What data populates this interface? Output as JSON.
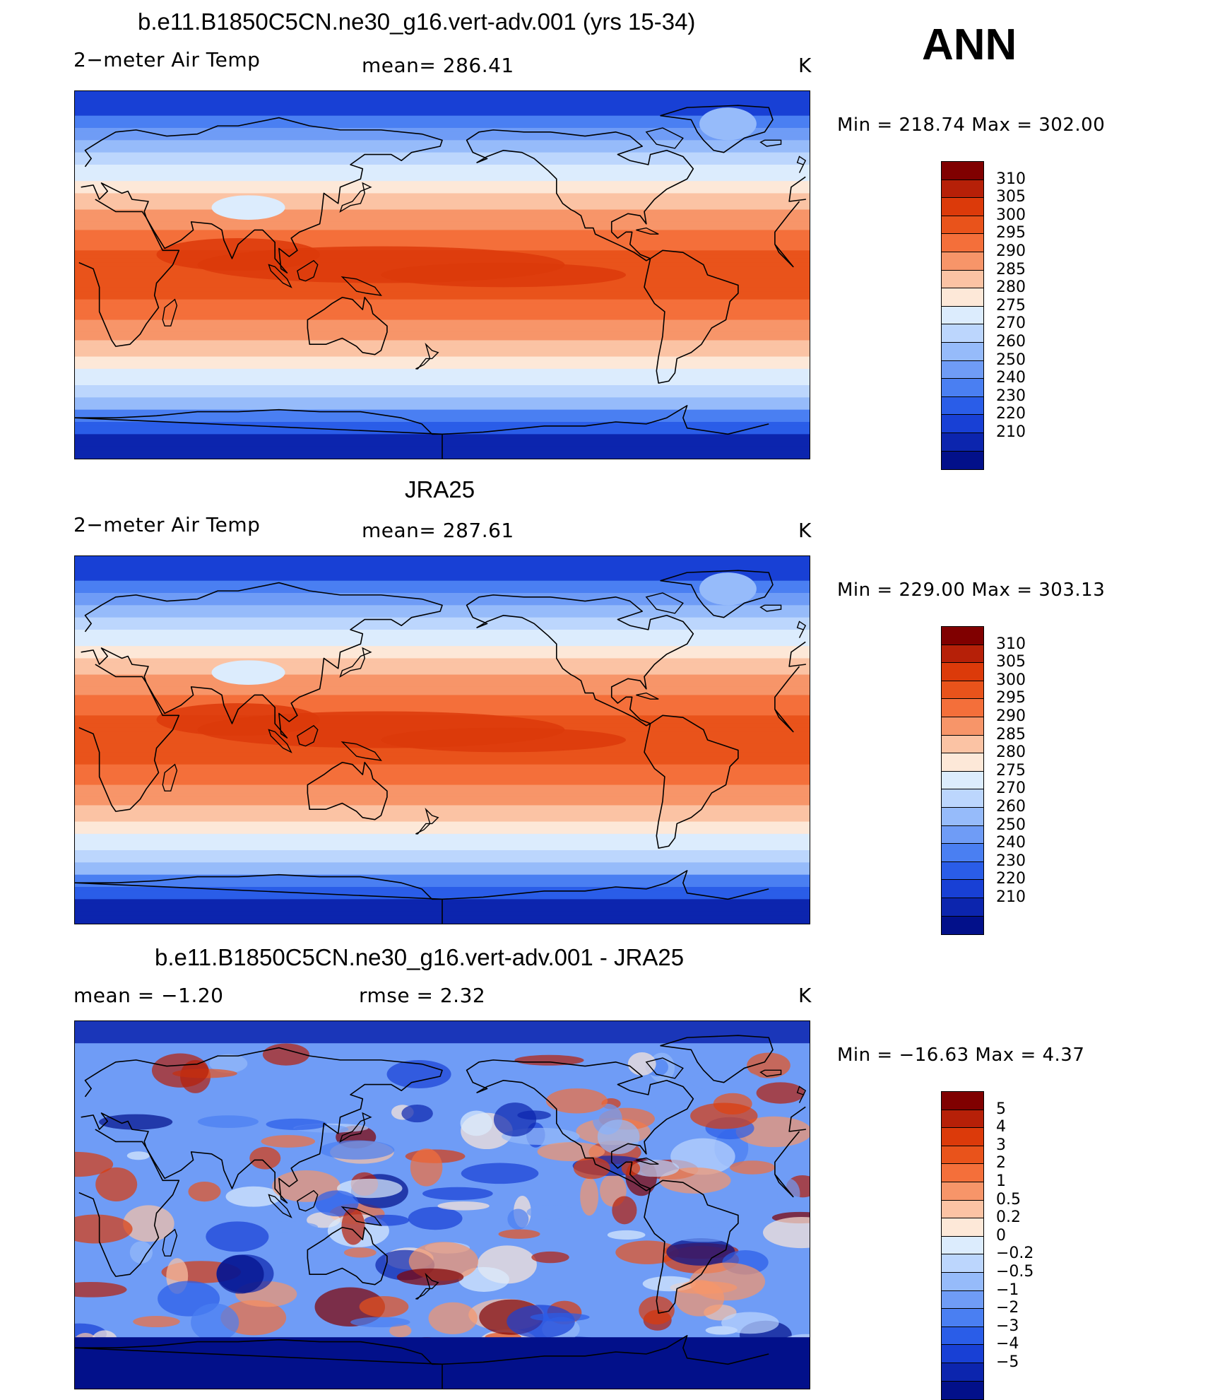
{
  "season": "ANN",
  "colors_abs": [
    "#800000",
    "#b62008",
    "#dc3a0a",
    "#e9531b",
    "#f46f3a",
    "#f79569",
    "#fbc3a4",
    "#fde8d8",
    "#dcecfd",
    "#bcd6fd",
    "#96bbfa",
    "#6f9cf6",
    "#4a7ff2",
    "#2a5de8",
    "#1840d5",
    "#0c25ae",
    "#02108a"
  ],
  "colors_diff": [
    "#800000",
    "#b62008",
    "#dc3a0a",
    "#e9531b",
    "#f46f3a",
    "#f79569",
    "#fbc3a4",
    "#fde8d8",
    "#dcecfd",
    "#bcd6fd",
    "#96bbfa",
    "#6f9cf6",
    "#4a7ff2",
    "#2a5de8",
    "#1840d5",
    "#0c25ae",
    "#02108a"
  ],
  "chart_data": [
    {
      "type": "heatmap",
      "title": "b.e11.B1850C5CN.ne30_g16.vert-adv.001 (yrs 15-34)",
      "left_label": "2−meter Air Temp",
      "center_label": "mean=  286.41",
      "units": "K",
      "mean": 286.41,
      "min_max": "Min  =  218.74  Max  =  302.00",
      "min": 218.74,
      "max": 302.0,
      "colorbar_levels": [
        "310",
        "305",
        "300",
        "295",
        "290",
        "285",
        "280",
        "275",
        "270",
        "260",
        "250",
        "240",
        "230",
        "220",
        "210"
      ],
      "projection": "cylindrical equidistant, centered on 180° longitude"
    },
    {
      "type": "heatmap",
      "title": "JRA25",
      "left_label": "2−meter Air Temp",
      "center_label": "mean=  287.61",
      "units": "K",
      "mean": 287.61,
      "min_max": "Min  =  229.00  Max  =  303.13",
      "min": 229.0,
      "max": 303.13,
      "colorbar_levels": [
        "310",
        "305",
        "300",
        "295",
        "290",
        "285",
        "280",
        "275",
        "270",
        "260",
        "250",
        "240",
        "230",
        "220",
        "210"
      ],
      "projection": "cylindrical equidistant, centered on 180° longitude"
    },
    {
      "type": "heatmap",
      "title": "b.e11.B1850C5CN.ne30_g16.vert-adv.001 - JRA25",
      "left_label": "mean  =    −1.20",
      "center_label": "rmse  =     2.32",
      "units": "K",
      "mean": -1.2,
      "rmse": 2.32,
      "min_max": "Min  =  −16.63  Max  =     4.37",
      "min": -16.63,
      "max": 4.37,
      "colorbar_levels": [
        "5",
        "4",
        "3",
        "2",
        "1",
        "0.5",
        "0.2",
        "0",
        "−0.2",
        "−0.5",
        "−1",
        "−2",
        "−3",
        "−4",
        "−5"
      ],
      "projection": "cylindrical equidistant, centered on 180° longitude"
    }
  ]
}
